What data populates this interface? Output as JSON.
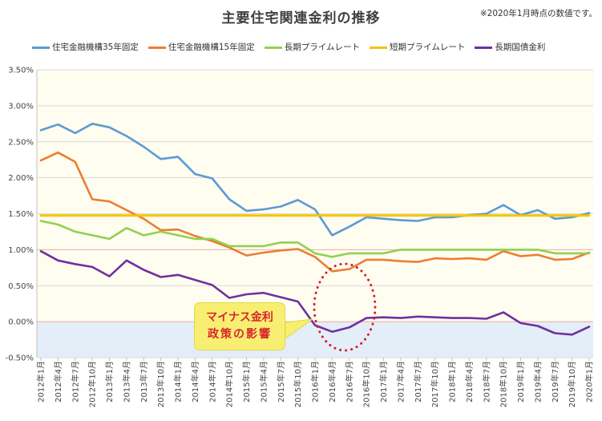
{
  "title": "主要住宅関連金利の推移",
  "note": "※2020年1月時点の数値です。",
  "callout": {
    "line1": "マイナス金利",
    "line2": "政策の影響"
  },
  "colors": {
    "flat35": "#5b9bd5",
    "flat15": "#ed7d31",
    "long_prime": "#92d050",
    "short_prime": "#f5c400",
    "jgb": "#7030a0",
    "plot_bg": "#fffdf0",
    "neg_bg": "#e3eef8",
    "grid": "#d9d9d9",
    "circle": "#d81b22"
  },
  "chart_data": {
    "type": "line",
    "title": "主要住宅関連金利の推移",
    "xlabel": "",
    "ylabel": "",
    "ylim": [
      -0.5,
      3.5
    ],
    "y_ticks": [
      "-0.50%",
      "0.00%",
      "0.50%",
      "1.00%",
      "1.50%",
      "2.00%",
      "2.50%",
      "3.00%",
      "3.50%"
    ],
    "y_tick_values": [
      -0.5,
      0.0,
      0.5,
      1.0,
      1.5,
      2.0,
      2.5,
      3.0,
      3.5
    ],
    "grid": "horizontal",
    "legend": "top",
    "categories": [
      "2012年1月",
      "2012年4月",
      "2012年7月",
      "2012年10月",
      "2013年1月",
      "2013年4月",
      "2013年7月",
      "2013年10月",
      "2014年1月",
      "2014年4月",
      "2014年7月",
      "2014年10月",
      "2015年1月",
      "2015年4月",
      "2015年7月",
      "2015年10月",
      "2016年1月",
      "2016年4月",
      "2016年7月",
      "2016年10月",
      "2017年1月",
      "2017年4月",
      "2017年7月",
      "2017年10月",
      "2018年1月",
      "2018年4月",
      "2018年7月",
      "2018年10月",
      "2019年1月",
      "2019年4月",
      "2019年7月",
      "2019年10月",
      "2020年1月"
    ],
    "series": [
      {
        "name": "住宅金融機構35年固定",
        "key": "flat35",
        "values": [
          2.66,
          2.74,
          2.62,
          2.75,
          2.7,
          2.58,
          2.43,
          2.26,
          2.29,
          2.05,
          1.99,
          1.7,
          1.54,
          1.56,
          1.6,
          1.69,
          1.56,
          1.2,
          1.32,
          1.45,
          1.43,
          1.41,
          1.4,
          1.45,
          1.45,
          1.48,
          1.5,
          1.62,
          1.48,
          1.55,
          1.43,
          1.45,
          1.51
        ]
      },
      {
        "name": "住宅金融機構15年固定",
        "key": "flat15",
        "values": [
          2.24,
          2.35,
          2.22,
          1.7,
          1.67,
          1.55,
          1.43,
          1.27,
          1.28,
          1.19,
          1.12,
          1.03,
          0.92,
          0.96,
          0.99,
          1.01,
          0.9,
          0.7,
          0.73,
          0.86,
          0.86,
          0.84,
          0.83,
          0.88,
          0.87,
          0.88,
          0.86,
          0.98,
          0.91,
          0.93,
          0.86,
          0.87,
          0.96
        ]
      },
      {
        "name": "長期プライムレート",
        "key": "long_prime",
        "values": [
          1.4,
          1.35,
          1.25,
          1.2,
          1.15,
          1.3,
          1.2,
          1.25,
          1.2,
          1.15,
          1.15,
          1.05,
          1.05,
          1.05,
          1.1,
          1.1,
          0.95,
          0.9,
          0.95,
          0.95,
          0.95,
          1.0,
          1.0,
          1.0,
          1.0,
          1.0,
          1.0,
          1.0,
          1.0,
          1.0,
          0.95,
          0.95,
          0.95
        ]
      },
      {
        "name": "短期プライムレート",
        "key": "short_prime",
        "values": [
          1.475,
          1.475,
          1.475,
          1.475,
          1.475,
          1.475,
          1.475,
          1.475,
          1.475,
          1.475,
          1.475,
          1.475,
          1.475,
          1.475,
          1.475,
          1.475,
          1.475,
          1.475,
          1.475,
          1.475,
          1.475,
          1.475,
          1.475,
          1.475,
          1.475,
          1.475,
          1.475,
          1.475,
          1.475,
          1.475,
          1.475,
          1.475,
          1.475
        ]
      },
      {
        "name": "長期国債金利",
        "key": "jgb",
        "values": [
          0.98,
          0.85,
          0.8,
          0.76,
          0.63,
          0.85,
          0.72,
          0.62,
          0.65,
          0.58,
          0.51,
          0.33,
          0.38,
          0.4,
          0.34,
          0.28,
          -0.05,
          -0.14,
          -0.08,
          0.05,
          0.06,
          0.05,
          0.07,
          0.06,
          0.05,
          0.05,
          0.04,
          0.13,
          -0.02,
          -0.06,
          -0.16,
          -0.18,
          -0.07
        ]
      }
    ]
  }
}
